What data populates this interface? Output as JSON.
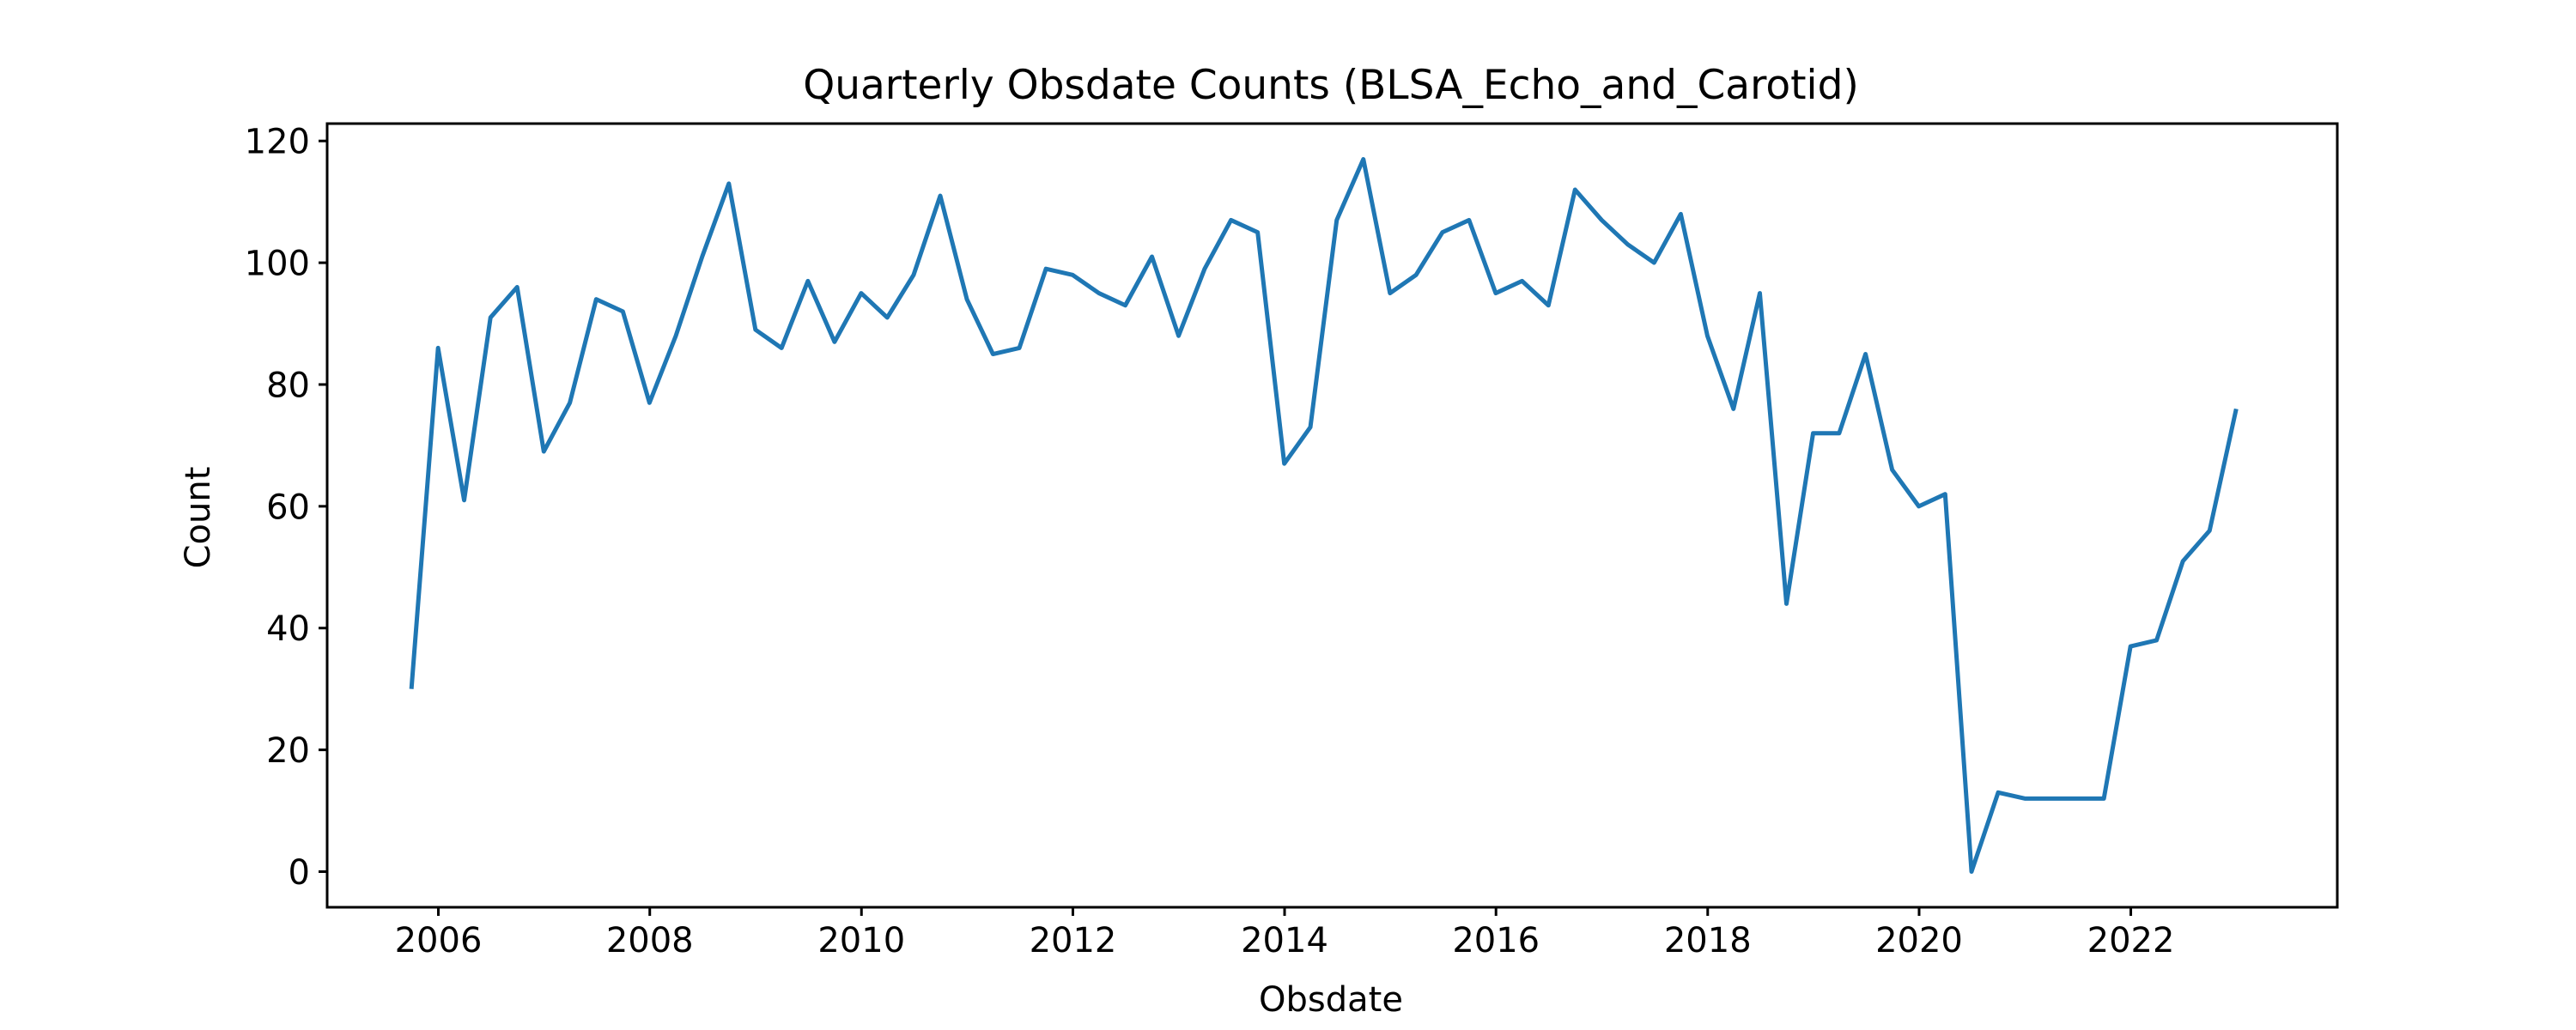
{
  "chart_data": {
    "type": "line",
    "title": "Quarterly Obsdate Counts (BLSA_Echo_and_Carotid)",
    "xlabel": "Obsdate",
    "ylabel": "Count",
    "xlim": [
      "2004-12-13",
      "2023-12-15"
    ],
    "ylim": [
      -5.85,
      122.85
    ],
    "x_ticks": [
      "2006",
      "2008",
      "2010",
      "2012",
      "2014",
      "2016",
      "2018",
      "2020",
      "2022"
    ],
    "y_ticks": [
      "0",
      "20",
      "40",
      "60",
      "80",
      "100",
      "120"
    ],
    "grid": false,
    "legend": "none",
    "colors": {
      "line": "#1f77b4"
    },
    "series": [
      {
        "x": [
          "2005-09-30",
          "2005-12-31",
          "2006-03-31",
          "2006-06-30",
          "2006-09-30",
          "2006-12-31",
          "2007-03-31",
          "2007-06-30",
          "2007-09-30",
          "2007-12-31",
          "2008-03-31",
          "2008-06-30",
          "2008-09-30",
          "2008-12-31",
          "2009-03-31",
          "2009-06-30",
          "2009-09-30",
          "2009-12-31",
          "2010-03-31",
          "2010-06-30",
          "2010-09-30",
          "2010-12-31",
          "2011-03-31",
          "2011-06-30",
          "2011-09-30",
          "2011-12-31",
          "2012-03-31",
          "2012-06-30",
          "2012-09-30",
          "2012-12-31",
          "2013-03-31",
          "2013-06-30",
          "2013-09-30",
          "2013-12-31",
          "2014-03-31",
          "2014-06-30",
          "2014-09-30",
          "2014-12-31",
          "2015-03-31",
          "2015-06-30",
          "2015-09-30",
          "2015-12-31",
          "2016-03-31",
          "2016-06-30",
          "2016-09-30",
          "2016-12-31",
          "2017-03-31",
          "2017-06-30",
          "2017-09-30",
          "2017-12-31",
          "2018-03-31",
          "2018-06-30",
          "2018-09-30",
          "2018-12-31",
          "2019-03-31",
          "2019-06-30",
          "2019-09-30",
          "2019-12-31",
          "2020-03-31",
          "2020-06-30",
          "2020-09-30",
          "2020-12-31",
          "2021-03-31",
          "2021-06-30",
          "2021-09-30",
          "2021-12-31",
          "2022-03-31",
          "2022-06-30",
          "2022-09-30",
          "2022-12-31"
        ],
        "y": [
          30,
          86,
          61,
          91,
          96,
          69,
          77,
          94,
          92,
          77,
          88,
          101,
          113,
          89,
          86,
          97,
          87,
          95,
          91,
          98,
          111,
          94,
          85,
          86,
          99,
          98,
          95,
          93,
          101,
          88,
          99,
          107,
          105,
          67,
          73,
          107,
          117,
          95,
          98,
          105,
          107,
          95,
          97,
          93,
          112,
          107,
          103,
          100,
          108,
          88,
          76,
          95,
          44,
          72,
          72,
          85,
          66,
          60,
          62,
          0,
          13,
          12,
          12,
          12,
          12,
          37,
          38,
          51,
          56,
          76
        ]
      }
    ]
  }
}
